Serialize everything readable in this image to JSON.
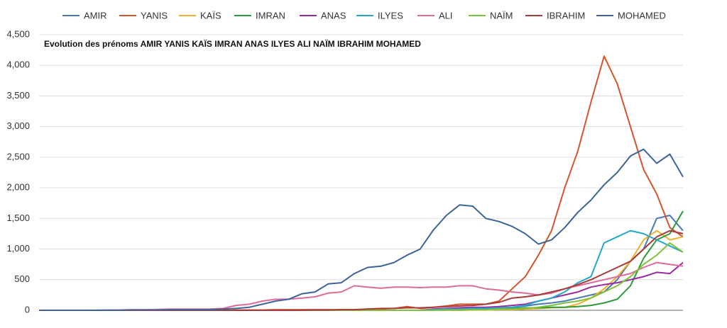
{
  "chart_data": {
    "type": "line",
    "title": "Evolution des prénoms AMIR YANIS KAÏS IMRAN ANAS ILYES ALI NAÏM IBRAHIM MOHAMED",
    "ylim": [
      0,
      4500
    ],
    "yticks": [
      0,
      500,
      {
        "value": 1000,
        "label": "1,000"
      },
      {
        "value": 1500,
        "label": "1,500"
      },
      {
        "value": 2000,
        "label": "2,000"
      },
      {
        "value": 2500,
        "label": "2,500"
      },
      {
        "value": 3000,
        "label": "3,000"
      },
      {
        "value": 3500,
        "label": "3,500"
      },
      {
        "value": 4000,
        "label": "4,000"
      },
      {
        "value": 4500,
        "label": "4,500"
      }
    ],
    "grid": true,
    "legend": "top",
    "series": [
      {
        "name": "AMIR",
        "color": "#4a78b5",
        "values": [
          0,
          0,
          0,
          0,
          0,
          0,
          0,
          0,
          0,
          0,
          0,
          0,
          0,
          0,
          0,
          0,
          0,
          0,
          0,
          0,
          0,
          0,
          0,
          0,
          0,
          0,
          0,
          0,
          0,
          0,
          10,
          10,
          20,
          20,
          30,
          40,
          50,
          70,
          100,
          120,
          150,
          200,
          250,
          300,
          500,
          800,
          1000,
          1500,
          1550,
          1300
        ]
      },
      {
        "name": "YANIS",
        "color": "#d4552c",
        "values": [
          0,
          0,
          0,
          0,
          0,
          0,
          0,
          0,
          0,
          0,
          0,
          0,
          0,
          0,
          0,
          5,
          5,
          5,
          10,
          10,
          10,
          10,
          10,
          10,
          10,
          20,
          20,
          30,
          60,
          30,
          50,
          70,
          100,
          100,
          100,
          150,
          350,
          550,
          900,
          1300,
          2000,
          2600,
          3400,
          4150,
          3700,
          3000,
          2300,
          1900,
          1350,
          1200
        ]
      },
      {
        "name": "KAÏS",
        "color": "#f0b02a",
        "values": [
          0,
          0,
          0,
          0,
          0,
          0,
          0,
          0,
          0,
          0,
          0,
          0,
          0,
          0,
          0,
          0,
          0,
          0,
          0,
          0,
          0,
          0,
          0,
          0,
          0,
          0,
          0,
          0,
          0,
          0,
          0,
          0,
          0,
          5,
          5,
          10,
          10,
          20,
          30,
          40,
          50,
          100,
          200,
          350,
          550,
          800,
          1150,
          1300,
          1150,
          1200
        ]
      },
      {
        "name": "IMRAN",
        "color": "#2e9a3a",
        "values": [
          0,
          0,
          0,
          0,
          0,
          0,
          0,
          0,
          0,
          0,
          0,
          0,
          0,
          0,
          0,
          0,
          0,
          0,
          0,
          0,
          0,
          0,
          0,
          0,
          0,
          0,
          0,
          0,
          0,
          0,
          5,
          10,
          10,
          20,
          20,
          30,
          30,
          40,
          40,
          50,
          50,
          60,
          80,
          120,
          180,
          400,
          850,
          1150,
          1250,
          1620
        ]
      },
      {
        "name": "ANAS",
        "color": "#9a2aa0",
        "values": [
          0,
          0,
          0,
          0,
          0,
          0,
          0,
          0,
          0,
          0,
          0,
          0,
          0,
          0,
          0,
          0,
          0,
          0,
          0,
          0,
          0,
          0,
          0,
          0,
          0,
          0,
          0,
          0,
          0,
          0,
          20,
          30,
          40,
          50,
          50,
          60,
          80,
          100,
          150,
          200,
          250,
          300,
          380,
          420,
          450,
          500,
          550,
          620,
          600,
          780
        ]
      },
      {
        "name": "ILYES",
        "color": "#21a9c9",
        "values": [
          0,
          0,
          0,
          0,
          0,
          0,
          0,
          0,
          0,
          0,
          0,
          0,
          0,
          0,
          0,
          0,
          0,
          0,
          0,
          0,
          0,
          0,
          0,
          0,
          0,
          0,
          0,
          0,
          0,
          0,
          10,
          20,
          20,
          30,
          30,
          40,
          50,
          80,
          150,
          200,
          300,
          450,
          550,
          1100,
          1200,
          1300,
          1250,
          1150,
          1050,
          950
        ]
      },
      {
        "name": "ALI",
        "color": "#e06a9a",
        "values": [
          0,
          0,
          0,
          0,
          0,
          5,
          5,
          10,
          10,
          15,
          20,
          20,
          20,
          20,
          30,
          80,
          100,
          150,
          180,
          180,
          200,
          220,
          280,
          300,
          400,
          380,
          360,
          380,
          380,
          370,
          380,
          380,
          400,
          400,
          350,
          330,
          300,
          280,
          250,
          280,
          350,
          400,
          450,
          500,
          550,
          600,
          700,
          780,
          750,
          720
        ]
      },
      {
        "name": "NAÏM",
        "color": "#7ec23a",
        "values": [
          0,
          0,
          0,
          0,
          0,
          0,
          0,
          0,
          0,
          0,
          0,
          0,
          0,
          0,
          0,
          0,
          0,
          0,
          0,
          0,
          0,
          0,
          0,
          0,
          0,
          0,
          0,
          0,
          0,
          0,
          0,
          5,
          5,
          10,
          10,
          20,
          20,
          30,
          50,
          80,
          120,
          150,
          200,
          300,
          400,
          550,
          750,
          900,
          1100,
          950
        ]
      },
      {
        "name": "IBRAHIM",
        "color": "#a83a3a",
        "values": [
          0,
          0,
          0,
          0,
          0,
          0,
          0,
          0,
          0,
          0,
          0,
          0,
          0,
          0,
          0,
          0,
          0,
          0,
          0,
          0,
          0,
          5,
          5,
          10,
          10,
          20,
          30,
          30,
          40,
          40,
          50,
          60,
          70,
          80,
          100,
          130,
          200,
          220,
          250,
          300,
          350,
          420,
          500,
          600,
          700,
          800,
          1000,
          1200,
          1300,
          1250
        ]
      },
      {
        "name": "MOHAMED",
        "color": "#3c6496",
        "values": [
          0,
          0,
          0,
          0,
          0,
          0,
          0,
          5,
          5,
          5,
          10,
          10,
          10,
          10,
          20,
          30,
          50,
          100,
          150,
          180,
          270,
          300,
          430,
          450,
          600,
          700,
          720,
          780,
          900,
          1000,
          1310,
          1550,
          1720,
          1700,
          1500,
          1450,
          1370,
          1250,
          1080,
          1150,
          1350,
          1600,
          1800,
          2050,
          2250,
          2520,
          2630,
          2400,
          2550,
          2180
        ]
      }
    ]
  }
}
